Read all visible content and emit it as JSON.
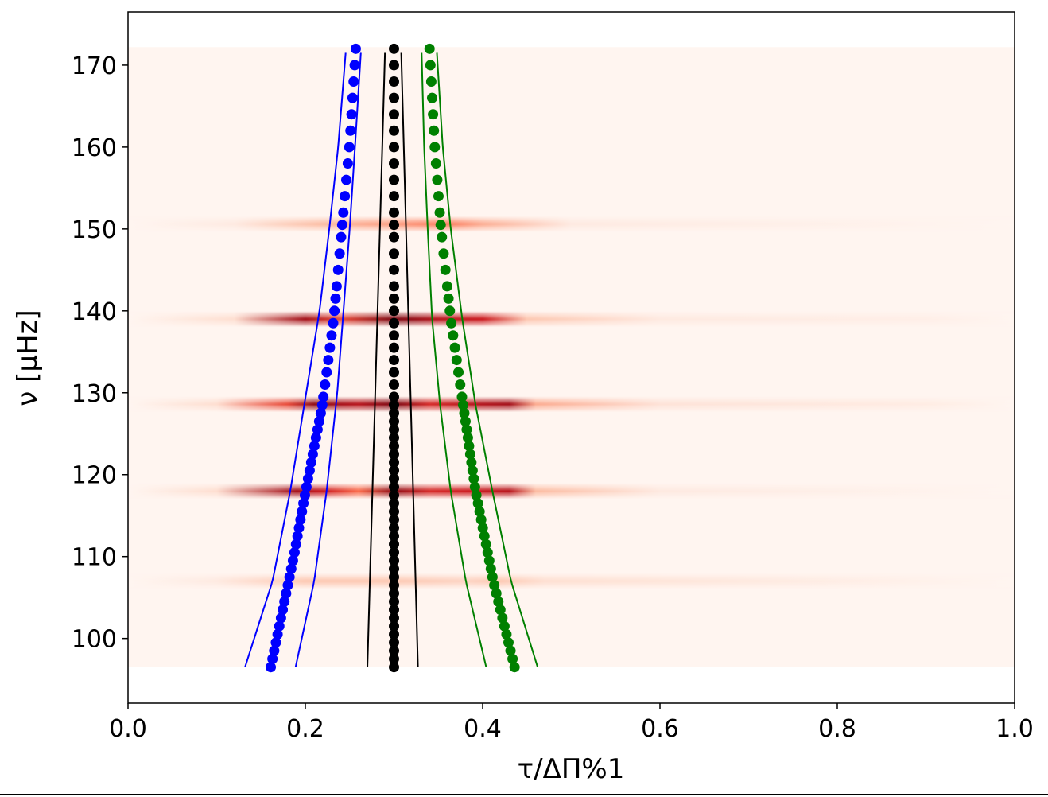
{
  "chart_data": {
    "type": "scatter",
    "title": "",
    "xlabel": "τ/ΔΠ%1",
    "ylabel": "ν [μHz]",
    "xlim": [
      0.0,
      1.0
    ],
    "ylim": [
      92.1,
      176.5
    ],
    "xticks": [
      "0.0",
      "0.2",
      "0.4",
      "0.6",
      "0.8",
      "1.0"
    ],
    "yticks": [
      "100",
      "110",
      "120",
      "130",
      "140",
      "150",
      "160",
      "170"
    ],
    "grid": false,
    "heatmap": {
      "colormap": "Reds",
      "background": "#fff5f0",
      "nu_range": [
        96.5,
        172.2
      ],
      "x_range": [
        0.0,
        1.0
      ],
      "bands": [
        {
          "nu": 150.6,
          "peaks": [
            [
              0.12,
              0.05
            ],
            [
              0.22,
              0.25
            ],
            [
              0.3,
              0.35
            ],
            [
              0.36,
              0.45
            ],
            [
              0.4,
              0.3
            ],
            [
              0.5,
              0.05
            ]
          ]
        },
        {
          "nu": 139.0,
          "peaks": [
            [
              0.12,
              0.1
            ],
            [
              0.2,
              0.85
            ],
            [
              0.24,
              0.6
            ],
            [
              0.3,
              0.95
            ],
            [
              0.35,
              0.8
            ],
            [
              0.4,
              0.75
            ],
            [
              0.45,
              0.2
            ],
            [
              0.6,
              0.05
            ],
            [
              0.9,
              0.03
            ]
          ]
        },
        {
          "nu": 128.6,
          "peaks": [
            [
              0.1,
              0.1
            ],
            [
              0.18,
              0.6
            ],
            [
              0.21,
              0.9
            ],
            [
              0.26,
              0.8
            ],
            [
              0.3,
              0.95
            ],
            [
              0.34,
              0.7
            ],
            [
              0.39,
              0.8
            ],
            [
              0.43,
              0.85
            ],
            [
              0.46,
              0.3
            ],
            [
              0.6,
              0.08
            ],
            [
              0.9,
              0.04
            ]
          ]
        },
        {
          "nu": 118.0,
          "peaks": [
            [
              0.1,
              0.1
            ],
            [
              0.19,
              0.85
            ],
            [
              0.22,
              0.75
            ],
            [
              0.26,
              0.5
            ],
            [
              0.3,
              0.9
            ],
            [
              0.34,
              0.7
            ],
            [
              0.39,
              0.75
            ],
            [
              0.43,
              0.8
            ],
            [
              0.46,
              0.25
            ],
            [
              0.6,
              0.05
            ]
          ]
        },
        {
          "nu": 107.0,
          "peaks": [
            [
              0.1,
              0.05
            ],
            [
              0.2,
              0.2
            ],
            [
              0.3,
              0.2
            ],
            [
              0.38,
              0.15
            ],
            [
              0.42,
              0.2
            ],
            [
              0.47,
              0.1
            ]
          ]
        }
      ]
    },
    "dot_nu": [
      96.5,
      97.5,
      98.5,
      99.5,
      100.5,
      101.5,
      102.5,
      103.5,
      104.5,
      105.5,
      106.5,
      107.5,
      108.5,
      109.5,
      110.5,
      111.5,
      112.5,
      113.5,
      114.5,
      115.5,
      116.5,
      117.5,
      118.5,
      119.5,
      120.5,
      121.5,
      122.5,
      123.5,
      124.5,
      125.5,
      126.5,
      127.5,
      128.5,
      129.5,
      131,
      132.5,
      134,
      135.5,
      137,
      138.5,
      140,
      141.5,
      143,
      145,
      147,
      149,
      150.5,
      152,
      154,
      156,
      158,
      160,
      162,
      164,
      166,
      168,
      170,
      172
    ],
    "series": [
      {
        "color": "#0000ff",
        "kind": "dots",
        "points": [
          [
            0.161,
            96.5
          ],
          [
            0.187,
            110
          ],
          [
            0.2,
            117.8
          ],
          [
            0.219,
            128.4
          ],
          [
            0.232,
            139
          ],
          [
            0.241,
            149.8
          ],
          [
            0.25,
            160.5
          ],
          [
            0.257,
            172.2
          ]
        ]
      },
      {
        "color": "#0000ff",
        "kind": "line",
        "points": [
          [
            0.132,
            96.5
          ],
          [
            0.163,
            107
          ],
          [
            0.183,
            118
          ],
          [
            0.201,
            130
          ],
          [
            0.216,
            140
          ],
          [
            0.227,
            150
          ],
          [
            0.237,
            160
          ],
          [
            0.246,
            172.2
          ]
        ]
      },
      {
        "color": "#0000ff",
        "kind": "line",
        "points": [
          [
            0.189,
            96.5
          ],
          [
            0.21,
            107
          ],
          [
            0.224,
            118
          ],
          [
            0.236,
            130
          ],
          [
            0.243,
            140
          ],
          [
            0.25,
            150
          ],
          [
            0.256,
            160
          ],
          [
            0.263,
            172.2
          ]
        ]
      },
      {
        "color": "#000000",
        "kind": "dots",
        "points": [
          [
            0.3,
            96.5
          ],
          [
            0.3,
            172.2
          ]
        ]
      },
      {
        "color": "#000000",
        "kind": "line",
        "points": [
          [
            0.27,
            96.5
          ],
          [
            0.29,
            172.2
          ]
        ]
      },
      {
        "color": "#000000",
        "kind": "line",
        "points": [
          [
            0.327,
            96.5
          ],
          [
            0.308,
            172.2
          ]
        ]
      },
      {
        "color": "#008000",
        "kind": "dots",
        "points": [
          [
            0.436,
            96.5
          ],
          [
            0.412,
            107
          ],
          [
            0.392,
            118
          ],
          [
            0.378,
            128.5
          ],
          [
            0.364,
            139
          ],
          [
            0.353,
            150
          ],
          [
            0.346,
            160
          ],
          [
            0.34,
            172.2
          ]
        ]
      },
      {
        "color": "#008000",
        "kind": "line",
        "points": [
          [
            0.404,
            96.5
          ],
          [
            0.381,
            107
          ],
          [
            0.364,
            118
          ],
          [
            0.352,
            128.5
          ],
          [
            0.343,
            139
          ],
          [
            0.338,
            150
          ],
          [
            0.334,
            160
          ],
          [
            0.331,
            172.2
          ]
        ]
      },
      {
        "color": "#008000",
        "kind": "line",
        "points": [
          [
            0.462,
            96.5
          ],
          [
            0.432,
            107
          ],
          [
            0.411,
            118
          ],
          [
            0.392,
            128.5
          ],
          [
            0.377,
            139
          ],
          [
            0.364,
            150
          ],
          [
            0.355,
            160
          ],
          [
            0.348,
            172.2
          ]
        ]
      }
    ]
  }
}
